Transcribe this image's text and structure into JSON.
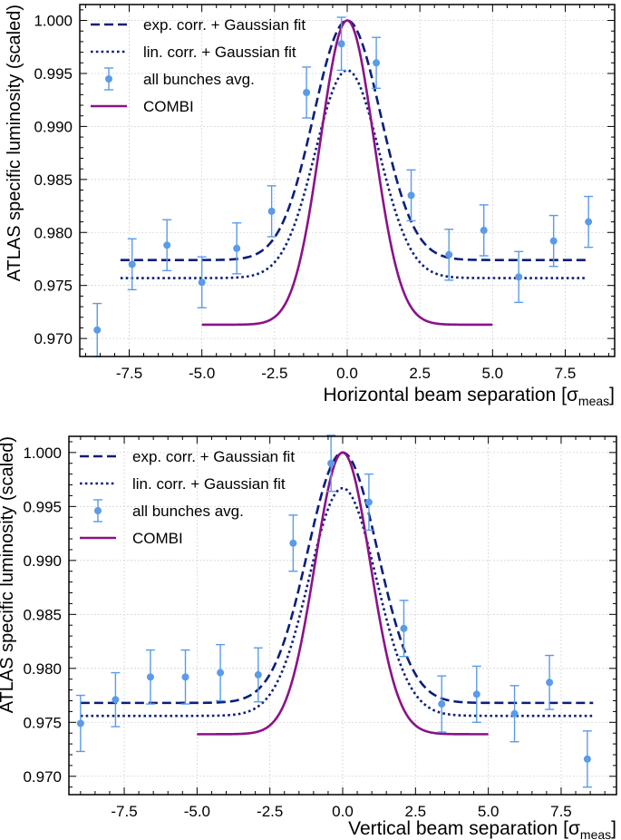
{
  "chart_data": [
    {
      "type": "scatter",
      "xlabel": "Horizontal beam separation [σ",
      "xlabel_sub": "meas",
      "xlabel_close": "]",
      "ylabel": "ATLAS specific luminosity  (scaled)",
      "xlim": [
        -9.2,
        9.2
      ],
      "ylim": [
        0.9683,
        1.0015
      ],
      "grid": true,
      "legend_position": "top-left",
      "xticks": [
        -7.5,
        -5.0,
        -2.5,
        0.0,
        2.5,
        5.0,
        7.5
      ],
      "xtick_labels": [
        "-7.5",
        "-5.0",
        "-2.5",
        "0.0",
        "2.5",
        "5.0",
        "7.5"
      ],
      "yticks": [
        0.97,
        0.975,
        0.98,
        0.985,
        0.99,
        0.995,
        1.0
      ],
      "ytick_labels": [
        "0.970",
        "0.975",
        "0.980",
        "0.985",
        "0.990",
        "0.995",
        "1.000"
      ],
      "legend": [
        {
          "label": "exp. corr. + Gaussian fit",
          "style": "dashed",
          "color": "#0a1f7a"
        },
        {
          "label": "lin. corr. + Gaussian fit",
          "style": "dotted",
          "color": "#0a1f7a"
        },
        {
          "label": "all bunches avg.",
          "style": "marker",
          "color": "#5b9be8"
        },
        {
          "label": "COMBI",
          "style": "solid",
          "color": "#8b1289"
        }
      ],
      "series": [
        {
          "name": "exp. corr. + Gaussian fit",
          "kind": "gaussian",
          "x_range": [
            -7.8,
            8.2
          ],
          "baseline": 0.9774,
          "peak": 1.0,
          "center": 0.0,
          "sigma": 1.15,
          "color": "#0a1f7a",
          "dash": "dashed"
        },
        {
          "name": "lin. corr. + Gaussian fit",
          "kind": "gaussian",
          "x_range": [
            -7.8,
            8.2
          ],
          "baseline": 0.9757,
          "peak": 0.9953,
          "center": 0.0,
          "sigma": 1.1,
          "color": "#0a1f7a",
          "dash": "dotted"
        },
        {
          "name": "COMBI",
          "kind": "gaussian",
          "x_range": [
            -5.0,
            5.0
          ],
          "baseline": 0.9713,
          "peak": 1.0,
          "center": 0.0,
          "sigma": 0.92,
          "color": "#8b1289",
          "dash": "solid"
        },
        {
          "name": "all bunches avg.",
          "kind": "points",
          "color": "#5b9be8",
          "x": [
            -8.6,
            -7.4,
            -6.2,
            -5.0,
            -3.8,
            -2.6,
            -1.4,
            -0.2,
            1.0,
            2.2,
            3.5,
            4.7,
            5.9,
            7.1,
            8.3
          ],
          "y": [
            0.9708,
            0.977,
            0.9788,
            0.9753,
            0.9785,
            0.982,
            0.9932,
            0.9978,
            0.996,
            0.9835,
            0.9779,
            0.9802,
            0.9758,
            0.9792,
            0.981
          ],
          "err": [
            0.0025,
            0.0024,
            0.0024,
            0.0024,
            0.0024,
            0.0024,
            0.0024,
            0.0025,
            0.0024,
            0.0024,
            0.0024,
            0.0024,
            0.0024,
            0.0024,
            0.0024
          ]
        }
      ]
    },
    {
      "type": "scatter",
      "xlabel": "Vertical beam separation [σ",
      "xlabel_sub": "meas",
      "xlabel_close": "]",
      "ylabel": "ATLAS specific luminosity  (scaled)",
      "xlim": [
        -9.4,
        9.4
      ],
      "ylim": [
        0.9683,
        1.0015
      ],
      "grid": true,
      "legend_position": "top-left",
      "xticks": [
        -7.5,
        -5.0,
        -2.5,
        0.0,
        2.5,
        5.0,
        7.5
      ],
      "xtick_labels": [
        "-7.5",
        "-5.0",
        "-2.5",
        "0.0",
        "2.5",
        "5.0",
        "7.5"
      ],
      "yticks": [
        0.97,
        0.975,
        0.98,
        0.985,
        0.99,
        0.995,
        1.0
      ],
      "ytick_labels": [
        "0.970",
        "0.975",
        "0.980",
        "0.985",
        "0.990",
        "0.995",
        "1.000"
      ],
      "legend": [
        {
          "label": "exp. corr. + Gaussian fit",
          "style": "dashed",
          "color": "#0a1f7a"
        },
        {
          "label": "lin. corr. + Gaussian fit",
          "style": "dotted",
          "color": "#0a1f7a"
        },
        {
          "label": "all bunches avg.",
          "style": "marker",
          "color": "#5b9be8"
        },
        {
          "label": "COMBI",
          "style": "solid",
          "color": "#8b1289"
        }
      ],
      "series": [
        {
          "name": "exp. corr. + Gaussian fit",
          "kind": "gaussian",
          "x_range": [
            -9.0,
            8.6
          ],
          "baseline": 0.9768,
          "peak": 1.0,
          "center": 0.0,
          "sigma": 1.2,
          "color": "#0a1f7a",
          "dash": "dashed"
        },
        {
          "name": "lin. corr. + Gaussian fit",
          "kind": "gaussian",
          "x_range": [
            -9.0,
            8.6
          ],
          "baseline": 0.9756,
          "peak": 0.9967,
          "center": 0.0,
          "sigma": 1.15,
          "color": "#0a1f7a",
          "dash": "dotted"
        },
        {
          "name": "COMBI",
          "kind": "gaussian",
          "x_range": [
            -5.0,
            5.0
          ],
          "baseline": 0.9739,
          "peak": 1.0,
          "center": 0.0,
          "sigma": 0.95,
          "color": "#8b1289",
          "dash": "solid"
        },
        {
          "name": "all bunches avg.",
          "kind": "points",
          "color": "#5b9be8",
          "x": [
            -9.0,
            -7.8,
            -6.6,
            -5.4,
            -4.2,
            -2.9,
            -1.7,
            -0.4,
            0.9,
            2.1,
            3.4,
            4.6,
            5.9,
            7.1,
            8.4
          ],
          "y": [
            0.9749,
            0.9771,
            0.9792,
            0.9792,
            0.9796,
            0.9794,
            0.9916,
            0.999,
            0.9954,
            0.9837,
            0.9767,
            0.9776,
            0.9758,
            0.9787,
            0.9716
          ],
          "err": [
            0.0026,
            0.0025,
            0.0025,
            0.0025,
            0.0026,
            0.0025,
            0.0026,
            0.0026,
            0.0026,
            0.0026,
            0.0026,
            0.0026,
            0.0026,
            0.0025,
            0.0026
          ]
        }
      ]
    }
  ]
}
